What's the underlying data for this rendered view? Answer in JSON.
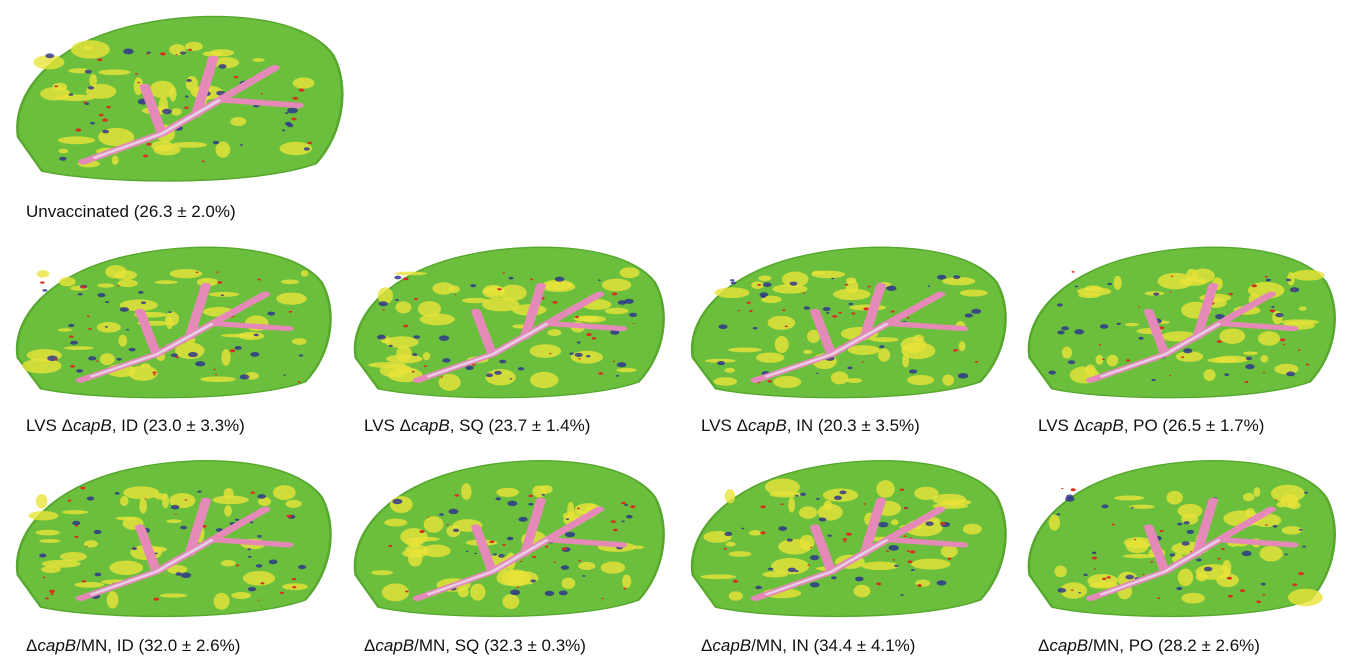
{
  "panels": [
    {
      "caption": [
        {
          "text": "Unvaccinated (26.3 ± 2.0%)"
        }
      ]
    },
    {
      "caption": [
        {
          "text": "LVS Δ"
        },
        {
          "text": "capB",
          "italic": true
        },
        {
          "text": ", ID (23.0 ± 3.3%)"
        }
      ]
    },
    {
      "caption": [
        {
          "text": "LVS Δ"
        },
        {
          "text": "capB",
          "italic": true
        },
        {
          "text": ", SQ (23.7 ± 1.4%)"
        }
      ]
    },
    {
      "caption": [
        {
          "text": "LVS Δ"
        },
        {
          "text": "capB",
          "italic": true
        },
        {
          "text": ", IN (20.3 ± 3.5%)"
        }
      ]
    },
    {
      "caption": [
        {
          "text": "LVS Δ"
        },
        {
          "text": "capB",
          "italic": true
        },
        {
          "text": ", PO (26.5 ± 1.7%)"
        }
      ]
    },
    {
      "caption": [
        {
          "text": "Δ"
        },
        {
          "text": "capB",
          "italic": true
        },
        {
          "text": "/MN, ID (32.0 ± 2.6%)"
        }
      ]
    },
    {
      "caption": [
        {
          "text": "Δ"
        },
        {
          "text": "capB",
          "italic": true
        },
        {
          "text": "/MN, SQ (32.3 ± 0.3%)"
        }
      ]
    },
    {
      "caption": [
        {
          "text": "Δ"
        },
        {
          "text": "capB",
          "italic": true
        },
        {
          "text": "/MN, IN (34.4 ± 4.1%)"
        }
      ]
    },
    {
      "caption": [
        {
          "text": "Δ"
        },
        {
          "text": "capB",
          "italic": true
        },
        {
          "text": "/MN, PO (28.2 ± 2.6%)"
        }
      ]
    }
  ]
}
